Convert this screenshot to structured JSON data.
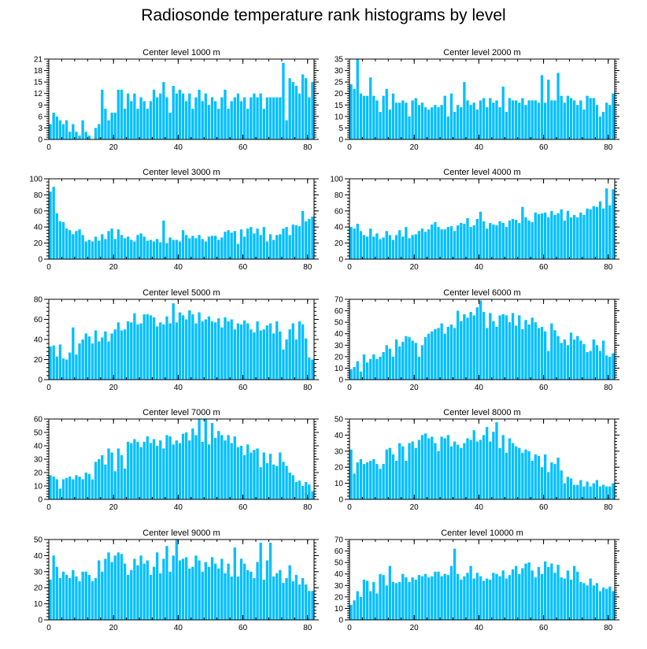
{
  "title": "Radiosonde temperature rank histograms by level",
  "bar_color": "#00bfff",
  "axis_color": "#000000",
  "chart_data": [
    {
      "type": "bar",
      "title": "Center level 1000 m",
      "xlim": [
        0,
        82
      ],
      "ylim": [
        0,
        21
      ],
      "xticks": [
        0,
        20,
        40,
        60,
        80
      ],
      "yticks": [
        0,
        3,
        6,
        9,
        12,
        15,
        18,
        21
      ],
      "values": [
        4,
        7,
        6,
        5,
        4,
        5,
        2,
        4,
        2,
        1,
        5,
        2,
        1,
        0,
        3,
        4,
        13,
        8,
        5,
        7,
        7,
        13,
        13,
        8,
        12,
        10,
        12,
        8,
        11,
        10,
        8,
        10,
        13,
        11,
        12,
        15,
        11,
        7,
        14,
        12,
        13,
        12,
        10,
        12,
        8,
        11,
        13,
        10,
        12,
        9,
        11,
        10,
        8,
        11,
        13,
        8,
        10,
        11,
        12,
        10,
        11,
        8,
        11,
        12,
        11,
        12,
        8,
        11,
        11,
        11,
        11,
        11,
        20,
        5,
        16,
        15,
        14,
        12,
        17,
        16,
        11,
        15
      ]
    },
    {
      "type": "bar",
      "title": "Center level 2000 m",
      "xlim": [
        0,
        82
      ],
      "ylim": [
        0,
        35
      ],
      "xticks": [
        0,
        20,
        40,
        60,
        80
      ],
      "yticks": [
        0,
        5,
        10,
        15,
        20,
        25,
        30,
        35
      ],
      "values": [
        24,
        22,
        35,
        20,
        19,
        19,
        27,
        19,
        17,
        12,
        19,
        22,
        13,
        20,
        16,
        16,
        17,
        16,
        10,
        17,
        18,
        15,
        16,
        14,
        13,
        14,
        15,
        14,
        15,
        19,
        10,
        20,
        12,
        15,
        14,
        25,
        17,
        15,
        16,
        13,
        17,
        18,
        14,
        18,
        16,
        17,
        14,
        23,
        12,
        18,
        17,
        17,
        16,
        18,
        15,
        17,
        17,
        17,
        16,
        28,
        16,
        26,
        17,
        17,
        29,
        19,
        16,
        19,
        18,
        17,
        15,
        17,
        13,
        19,
        18,
        18,
        15,
        10,
        12,
        16,
        15,
        20
      ]
    },
    {
      "type": "bar",
      "title": "Center level 3000 m",
      "xlim": [
        0,
        82
      ],
      "ylim": [
        0,
        100
      ],
      "xticks": [
        0,
        20,
        40,
        60,
        80
      ],
      "yticks": [
        0,
        20,
        40,
        60,
        80,
        100
      ],
      "values": [
        84,
        90,
        57,
        47,
        46,
        38,
        36,
        31,
        35,
        37,
        30,
        22,
        24,
        22,
        28,
        23,
        31,
        25,
        35,
        38,
        25,
        37,
        30,
        26,
        28,
        24,
        22,
        30,
        32,
        28,
        23,
        24,
        22,
        25,
        21,
        48,
        20,
        27,
        24,
        24,
        22,
        36,
        30,
        26,
        29,
        26,
        30,
        25,
        22,
        28,
        29,
        29,
        24,
        27,
        34,
        36,
        33,
        35,
        19,
        37,
        28,
        38,
        40,
        32,
        38,
        30,
        40,
        22,
        31,
        24,
        30,
        31,
        38,
        40,
        30,
        43,
        42,
        41,
        60,
        47,
        50,
        53
      ]
    },
    {
      "type": "bar",
      "title": "Center level 4000 m",
      "xlim": [
        0,
        82
      ],
      "ylim": [
        0,
        100
      ],
      "xticks": [
        0,
        20,
        40,
        60,
        80
      ],
      "yticks": [
        0,
        20,
        40,
        60,
        80,
        100
      ],
      "values": [
        40,
        38,
        44,
        35,
        30,
        28,
        38,
        28,
        32,
        25,
        27,
        35,
        30,
        24,
        30,
        36,
        28,
        40,
        26,
        30,
        31,
        35,
        38,
        34,
        37,
        43,
        46,
        40,
        37,
        37,
        40,
        41,
        35,
        42,
        45,
        44,
        51,
        40,
        42,
        50,
        59,
        47,
        38,
        45,
        43,
        42,
        47,
        45,
        40,
        48,
        50,
        49,
        45,
        65,
        52,
        48,
        46,
        58,
        56,
        57,
        58,
        52,
        60,
        55,
        57,
        62,
        48,
        60,
        52,
        55,
        52,
        58,
        55,
        63,
        62,
        66,
        65,
        72,
        63,
        88,
        67,
        87
      ]
    },
    {
      "type": "bar",
      "title": "Center level 5000 m",
      "xlim": [
        0,
        82
      ],
      "ylim": [
        0,
        80
      ],
      "xticks": [
        0,
        20,
        40,
        60,
        80
      ],
      "yticks": [
        0,
        20,
        40,
        60,
        80
      ],
      "values": [
        33,
        34,
        23,
        35,
        21,
        20,
        27,
        52,
        25,
        36,
        40,
        46,
        43,
        36,
        49,
        38,
        42,
        48,
        38,
        46,
        50,
        57,
        49,
        50,
        58,
        57,
        66,
        55,
        56,
        65,
        65,
        64,
        62,
        53,
        57,
        55,
        63,
        56,
        76,
        57,
        67,
        64,
        60,
        69,
        65,
        56,
        67,
        58,
        60,
        63,
        58,
        57,
        61,
        52,
        62,
        58,
        60,
        50,
        56,
        55,
        59,
        56,
        50,
        47,
        58,
        49,
        50,
        54,
        56,
        46,
        58,
        48,
        30,
        40,
        50,
        56,
        40,
        58,
        55,
        41,
        22,
        20
      ]
    },
    {
      "type": "bar",
      "title": "Center level 6000 m",
      "xlim": [
        0,
        82
      ],
      "ylim": [
        0,
        70
      ],
      "xticks": [
        0,
        20,
        40,
        60,
        80
      ],
      "yticks": [
        0,
        10,
        20,
        30,
        40,
        50,
        60,
        70
      ],
      "values": [
        9,
        11,
        16,
        7,
        22,
        15,
        18,
        22,
        18,
        20,
        24,
        30,
        27,
        20,
        35,
        29,
        33,
        38,
        37,
        34,
        32,
        20,
        30,
        37,
        40,
        42,
        44,
        45,
        49,
        40,
        46,
        48,
        45,
        60,
        51,
        57,
        54,
        59,
        56,
        63,
        69,
        59,
        45,
        58,
        51,
        46,
        56,
        57,
        56,
        50,
        58,
        47,
        56,
        44,
        52,
        48,
        54,
        50,
        45,
        46,
        42,
        25,
        49,
        43,
        38,
        32,
        35,
        30,
        41,
        35,
        38,
        34,
        31,
        24,
        25,
        35,
        30,
        25,
        34,
        21,
        20,
        23
      ]
    },
    {
      "type": "bar",
      "title": "Center level 7000 m",
      "xlim": [
        0,
        82
      ],
      "ylim": [
        0,
        60
      ],
      "xticks": [
        0,
        20,
        40,
        60,
        80
      ],
      "yticks": [
        0,
        10,
        20,
        30,
        40,
        50,
        60
      ],
      "values": [
        18,
        17,
        15,
        8,
        15,
        16,
        17,
        15,
        18,
        17,
        15,
        20,
        19,
        15,
        28,
        30,
        33,
        26,
        38,
        35,
        21,
        38,
        33,
        23,
        43,
        42,
        45,
        43,
        39,
        43,
        47,
        42,
        45,
        40,
        44,
        38,
        48,
        47,
        41,
        44,
        42,
        49,
        50,
        44,
        53,
        48,
        60,
        43,
        60,
        41,
        57,
        46,
        51,
        48,
        44,
        48,
        42,
        47,
        39,
        40,
        33,
        41,
        35,
        37,
        38,
        24,
        35,
        27,
        34,
        26,
        25,
        35,
        28,
        25,
        20,
        18,
        13,
        14,
        10,
        13,
        11,
        6
      ]
    },
    {
      "type": "bar",
      "title": "Center level 8000 m",
      "xlim": [
        0,
        82
      ],
      "ylim": [
        0,
        50
      ],
      "xticks": [
        0,
        20,
        40,
        60,
        80
      ],
      "yticks": [
        0,
        10,
        20,
        30,
        40,
        50
      ],
      "values": [
        31,
        16,
        23,
        25,
        22,
        23,
        24,
        25,
        22,
        19,
        22,
        31,
        32,
        28,
        24,
        35,
        33,
        24,
        35,
        36,
        32,
        37,
        40,
        41,
        38,
        39,
        35,
        30,
        39,
        38,
        40,
        33,
        36,
        34,
        32,
        35,
        38,
        37,
        43,
        36,
        37,
        40,
        45,
        36,
        42,
        48,
        32,
        40,
        29,
        38,
        35,
        33,
        32,
        29,
        31,
        30,
        24,
        28,
        27,
        20,
        28,
        17,
        23,
        22,
        26,
        18,
        10,
        14,
        13,
        9,
        9,
        12,
        8,
        11,
        8,
        10,
        12,
        8,
        9,
        8,
        8,
        10
      ]
    },
    {
      "type": "bar",
      "title": "Center level 9000 m",
      "xlim": [
        0,
        82
      ],
      "ylim": [
        0,
        50
      ],
      "xticks": [
        0,
        20,
        40,
        60,
        80
      ],
      "yticks": [
        0,
        10,
        20,
        30,
        40,
        50
      ],
      "values": [
        25,
        40,
        33,
        26,
        30,
        28,
        26,
        31,
        27,
        24,
        30,
        30,
        28,
        24,
        26,
        37,
        30,
        38,
        42,
        36,
        40,
        42,
        41,
        35,
        28,
        31,
        38,
        34,
        40,
        35,
        37,
        28,
        33,
        42,
        29,
        38,
        46,
        30,
        40,
        51,
        37,
        38,
        39,
        32,
        33,
        40,
        37,
        30,
        36,
        33,
        39,
        35,
        32,
        38,
        29,
        35,
        27,
        45,
        27,
        38,
        35,
        31,
        30,
        26,
        36,
        48,
        25,
        37,
        48,
        27,
        29,
        31,
        23,
        26,
        34,
        24,
        28,
        22,
        26,
        22,
        18,
        18
      ]
    },
    {
      "type": "bar",
      "title": "Center level 10000 m",
      "xlim": [
        0,
        82
      ],
      "ylim": [
        0,
        70
      ],
      "xticks": [
        0,
        20,
        40,
        60,
        80
      ],
      "yticks": [
        0,
        10,
        20,
        30,
        40,
        50,
        60,
        70
      ],
      "values": [
        13,
        17,
        25,
        20,
        35,
        34,
        25,
        33,
        23,
        40,
        39,
        30,
        47,
        33,
        32,
        33,
        40,
        37,
        33,
        37,
        35,
        39,
        38,
        40,
        37,
        38,
        42,
        42,
        38,
        40,
        39,
        47,
        62,
        40,
        35,
        38,
        41,
        47,
        36,
        41,
        38,
        34,
        36,
        35,
        41,
        40,
        38,
        43,
        36,
        39,
        44,
        47,
        40,
        45,
        49,
        50,
        43,
        37,
        46,
        40,
        51,
        46,
        49,
        41,
        48,
        37,
        36,
        43,
        35,
        47,
        42,
        33,
        32,
        30,
        36,
        30,
        32,
        25,
        28,
        27,
        29,
        25
      ]
    }
  ]
}
